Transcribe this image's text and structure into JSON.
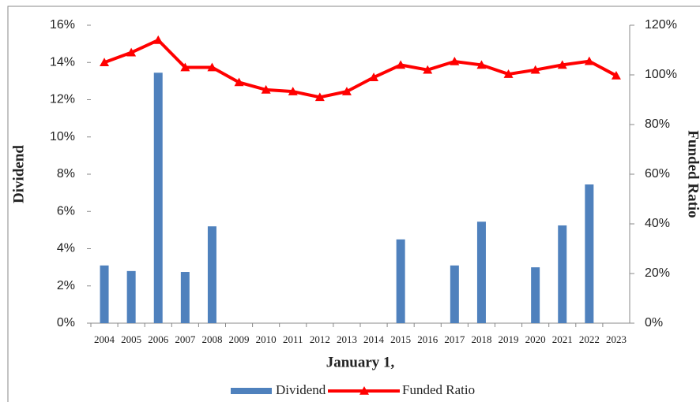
{
  "chart_data": {
    "type": "bar_line",
    "xlabel": "January 1,",
    "ylabel": "Dividend",
    "y2label": "Funded  Ratio",
    "categories": [
      "2004",
      "2005",
      "2006",
      "2007",
      "2008",
      "2009",
      "2010",
      "2011",
      "2012",
      "2013",
      "2014",
      "2015",
      "2016",
      "2017",
      "2018",
      "2019",
      "2020",
      "2021",
      "2022",
      "2023"
    ],
    "series": [
      {
        "name": "Dividend",
        "type": "bar",
        "color": "#4f81bd",
        "values": [
          3.1,
          2.8,
          13.45,
          2.75,
          5.2,
          0,
          0,
          0,
          0,
          0,
          0,
          4.5,
          0,
          3.1,
          5.45,
          0,
          3.0,
          5.25,
          7.45,
          0
        ]
      },
      {
        "name": "Funded Ratio",
        "type": "line",
        "axis": "y2",
        "color": "#ff0000",
        "values": [
          105,
          109,
          114,
          103,
          103,
          97,
          94,
          93.3,
          91,
          93.3,
          99,
          104,
          102,
          105.4,
          104,
          100.3,
          102,
          104,
          105.5,
          99.7
        ]
      }
    ],
    "ylim": [
      0,
      16
    ],
    "yticks": [
      {
        "value": 0,
        "label": "0%"
      },
      {
        "value": 2,
        "label": "2%"
      },
      {
        "value": 4,
        "label": "4%"
      },
      {
        "value": 6,
        "label": "6%"
      },
      {
        "value": 8,
        "label": "8%"
      },
      {
        "value": 10,
        "label": "10%"
      },
      {
        "value": 12,
        "label": "12%"
      },
      {
        "value": 14,
        "label": "14%"
      },
      {
        "value": 16,
        "label": "16%"
      }
    ],
    "y2lim": [
      0,
      120
    ],
    "y2ticks": [
      {
        "value": 0,
        "label": "0%"
      },
      {
        "value": 20,
        "label": "20%"
      },
      {
        "value": 40,
        "label": "40%"
      },
      {
        "value": 60,
        "label": "60%"
      },
      {
        "value": 80,
        "label": "80%"
      },
      {
        "value": 100,
        "label": "100%"
      },
      {
        "value": 120,
        "label": "120%"
      }
    ],
    "legend": "bottom"
  }
}
